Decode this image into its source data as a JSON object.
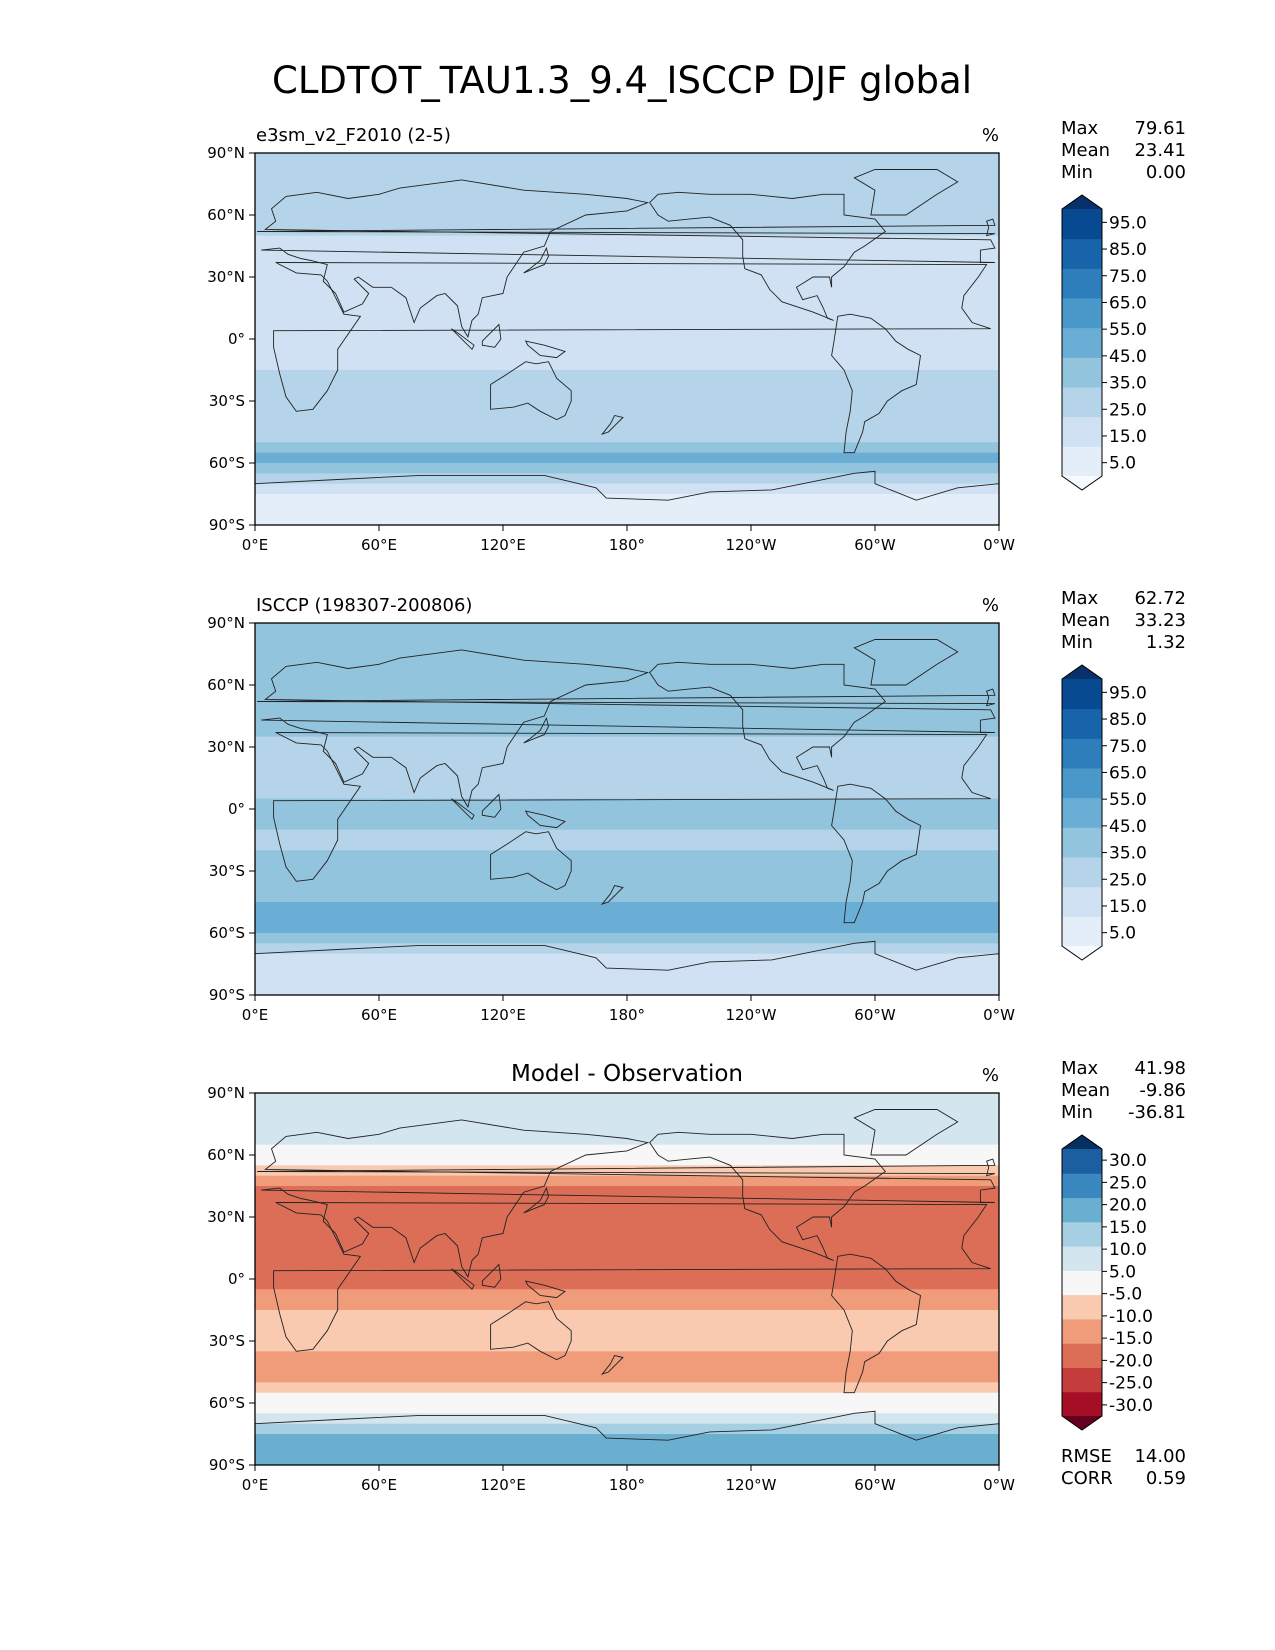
{
  "figure": {
    "title": "CLDTOT_TAU1.3_9.4_ISCCP DJF global"
  },
  "chart_data": [
    {
      "type": "heatmap",
      "panel": "test",
      "title": "e3sm_v2_F2010 (2-5)",
      "units": "%",
      "stats": {
        "max_label": "Max",
        "max": "79.61",
        "mean_label": "Mean",
        "mean": "23.41",
        "min_label": "Min",
        "min": "0.00"
      },
      "x_ticks": [
        "0°E",
        "60°E",
        "120°E",
        "180°",
        "120°W",
        "60°W",
        "0°W"
      ],
      "y_ticks": [
        "90°N",
        "60°N",
        "30°N",
        "0°",
        "30°S",
        "60°S",
        "90°S"
      ],
      "colorbar": {
        "levels": [
          "5.0",
          "15.0",
          "25.0",
          "35.0",
          "45.0",
          "55.0",
          "65.0",
          "75.0",
          "85.0",
          "95.0"
        ],
        "colors": [
          "#f7fbff",
          "#e3eef9",
          "#cfe1f2",
          "#b5d4e9",
          "#93c4de",
          "#6aaed6",
          "#4a98c9",
          "#2e7ebc",
          "#1764ab",
          "#084a91",
          "#08306b"
        ]
      },
      "zonal_profile": [
        {
          "lat": 75,
          "value": 30
        },
        {
          "lat": 60,
          "value": 30
        },
        {
          "lat": 45,
          "value": 22
        },
        {
          "lat": 30,
          "value": 18
        },
        {
          "lat": 15,
          "value": 15
        },
        {
          "lat": 0,
          "value": 20
        },
        {
          "lat": -15,
          "value": 25
        },
        {
          "lat": -30,
          "value": 28
        },
        {
          "lat": -45,
          "value": 30
        },
        {
          "lat": -60,
          "value": 48
        },
        {
          "lat": -75,
          "value": 12
        }
      ]
    },
    {
      "type": "heatmap",
      "panel": "reference",
      "title": "ISCCP (198307-200806)",
      "units": "%",
      "stats": {
        "max_label": "Max",
        "max": "62.72",
        "mean_label": "Mean",
        "mean": "33.23",
        "min_label": "Min",
        "min": "1.32"
      },
      "x_ticks": [
        "0°E",
        "60°E",
        "120°E",
        "180°",
        "120°W",
        "60°W",
        "0°W"
      ],
      "y_ticks": [
        "90°N",
        "60°N",
        "30°N",
        "0°",
        "30°S",
        "60°S",
        "90°S"
      ],
      "colorbar": {
        "levels": [
          "5.0",
          "15.0",
          "25.0",
          "35.0",
          "45.0",
          "55.0",
          "65.0",
          "75.0",
          "85.0",
          "95.0"
        ],
        "colors": [
          "#f7fbff",
          "#e3eef9",
          "#cfe1f2",
          "#b5d4e9",
          "#93c4de",
          "#6aaed6",
          "#4a98c9",
          "#2e7ebc",
          "#1764ab",
          "#084a91",
          "#08306b"
        ]
      },
      "zonal_profile": [
        {
          "lat": 65,
          "value": 35
        },
        {
          "lat": 45,
          "value": 40
        },
        {
          "lat": 30,
          "value": 33
        },
        {
          "lat": 15,
          "value": 30
        },
        {
          "lat": 0,
          "value": 38
        },
        {
          "lat": -15,
          "value": 33
        },
        {
          "lat": -30,
          "value": 38
        },
        {
          "lat": -45,
          "value": 45
        },
        {
          "lat": -60,
          "value": 48
        },
        {
          "lat": -75,
          "value": 20
        }
      ]
    },
    {
      "type": "heatmap",
      "panel": "difference",
      "title": "Model - Observation",
      "units": "%",
      "stats": {
        "max_label": "Max",
        "max": "41.98",
        "mean_label": "Mean",
        "mean": "-9.86",
        "min_label": "Min",
        "min": "-36.81"
      },
      "metrics": {
        "rmse_label": "RMSE",
        "rmse": "14.00",
        "corr_label": "CORR",
        "corr": "0.59"
      },
      "x_ticks": [
        "0°E",
        "60°E",
        "120°E",
        "180°",
        "120°W",
        "60°W",
        "0°W"
      ],
      "y_ticks": [
        "90°N",
        "60°N",
        "30°N",
        "0°",
        "30°S",
        "60°S",
        "90°S"
      ],
      "colorbar": {
        "levels": [
          "-30.0",
          "-25.0",
          "-20.0",
          "-15.0",
          "-10.0",
          "-5.0",
          "5.0",
          "10.0",
          "15.0",
          "20.0",
          "25.0",
          "30.0"
        ],
        "colors": [
          "#67001f",
          "#a50f26",
          "#c43c3c",
          "#dc6e57",
          "#f09c7b",
          "#f9cab0",
          "#f7f7f7",
          "#d3e6f0",
          "#a6cfe4",
          "#6aaed0",
          "#3a88bf",
          "#1c5fa1",
          "#053061"
        ]
      },
      "zonal_profile": [
        {
          "lat": 65,
          "value": 8
        },
        {
          "lat": 45,
          "value": -18
        },
        {
          "lat": 30,
          "value": -15
        },
        {
          "lat": 15,
          "value": -17
        },
        {
          "lat": 0,
          "value": -18
        },
        {
          "lat": -15,
          "value": -10
        },
        {
          "lat": -30,
          "value": -8
        },
        {
          "lat": -45,
          "value": -15
        },
        {
          "lat": -60,
          "value": 0
        },
        {
          "lat": -75,
          "value": 15
        }
      ]
    }
  ]
}
